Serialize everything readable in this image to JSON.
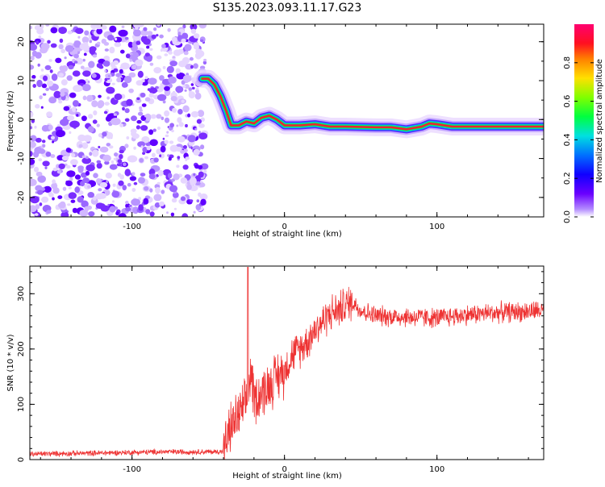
{
  "title": "S135.2023.093.11.17.G23",
  "charts": [
    {
      "id": "spectrogram",
      "type": "heatmap",
      "xlabel": "Height of straight line (km)",
      "ylabel": "Frequency (Hz)",
      "xlim": [
        -167,
        170
      ],
      "ylim": [
        -25,
        24.5
      ],
      "xticks": [
        -100,
        0,
        100
      ],
      "yticks": [
        -20,
        -10,
        0,
        10,
        20
      ],
      "colorbar": {
        "label": "Normalized spectral amplitude",
        "range": [
          0.0,
          1.0
        ],
        "ticks": [
          "0.0",
          "0.2",
          "0.4",
          "0.6",
          "0.8"
        ],
        "tick_values": [
          0.0,
          0.2,
          0.4,
          0.6,
          0.8
        ],
        "colormap": [
          "#ffffff",
          "#9b6cff",
          "#4a00ff",
          "#0000ff",
          "#00c0ff",
          "#00ff60",
          "#c8ff00",
          "#ffb000",
          "#ff2020",
          "#ff0070"
        ]
      },
      "noise_region_x": [
        -167,
        -55
      ],
      "signal_track": {
        "x": [
          -54,
          -50,
          -46,
          -42,
          -38,
          -35,
          -30,
          -25,
          -20,
          -15,
          -10,
          -5,
          0,
          5,
          10,
          20,
          30,
          40,
          60,
          70,
          80,
          90,
          95,
          100,
          110,
          130,
          150,
          170
        ],
        "y": [
          10.5,
          10.5,
          9,
          6,
          2,
          -1.5,
          -1.5,
          -0.5,
          -1,
          0.5,
          1,
          0,
          -1.5,
          -1.5,
          -1.5,
          -1.2,
          -1.8,
          -1.8,
          -2,
          -2,
          -2.5,
          -1.8,
          -1,
          -1.2,
          -1.8,
          -1.8,
          -1.8,
          -1.8
        ]
      }
    },
    {
      "id": "snr",
      "type": "line",
      "xlabel": "Height of straight line (km)",
      "ylabel": "SNR (10 * v/v)",
      "xlim": [
        -167,
        170
      ],
      "ylim": [
        0,
        350
      ],
      "xticks": [
        -100,
        0,
        100
      ],
      "yticks": [
        0,
        100,
        200,
        300
      ],
      "color": "#ee3333",
      "trend": {
        "x": [
          -167,
          -120,
          -80,
          -45,
          -40,
          -35,
          -30,
          -25,
          -22,
          -20,
          -15,
          -10,
          -5,
          0,
          5,
          10,
          15,
          20,
          25,
          30,
          35,
          40,
          45,
          50,
          60,
          80,
          100,
          120,
          140,
          160,
          170
        ],
        "y": [
          10,
          12,
          14,
          14,
          15,
          60,
          80,
          100,
          160,
          110,
          120,
          135,
          150,
          160,
          190,
          200,
          215,
          235,
          250,
          265,
          270,
          280,
          285,
          270,
          260,
          258,
          256,
          262,
          266,
          268,
          270
        ]
      },
      "peak": {
        "x": -24,
        "y": 348
      }
    }
  ]
}
